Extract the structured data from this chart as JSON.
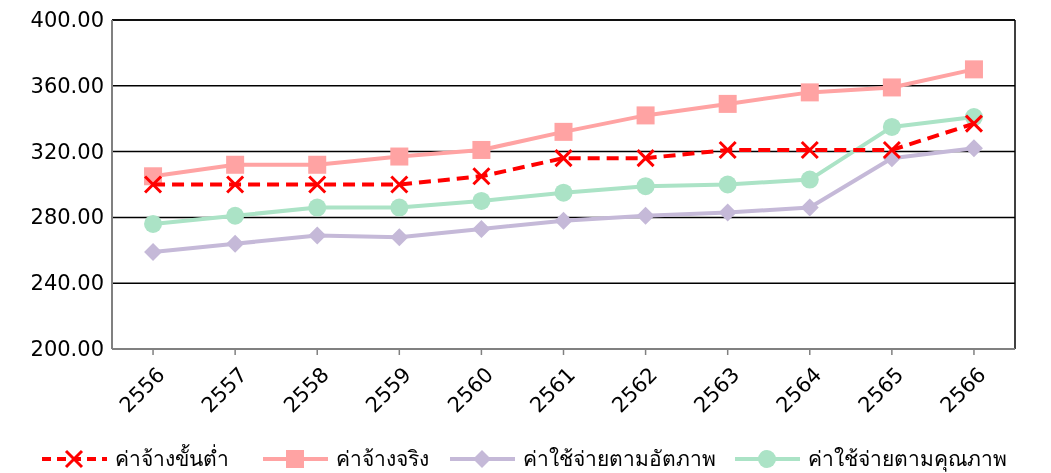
{
  "chart_data": {
    "type": "line",
    "categories": [
      "2556",
      "2557",
      "2558",
      "2559",
      "2560",
      "2561",
      "2562",
      "2563",
      "2564",
      "2565",
      "2566"
    ],
    "ylim": [
      200,
      400
    ],
    "yticks": [
      {
        "value": 200,
        "label": "200.00"
      },
      {
        "value": 240,
        "label": "240.00"
      },
      {
        "value": 280,
        "label": "280.00"
      },
      {
        "value": 320,
        "label": "320.00"
      },
      {
        "value": 360,
        "label": "360.00"
      },
      {
        "value": 400,
        "label": "400.00"
      }
    ],
    "grid": "y",
    "legend": "bottom",
    "series": [
      {
        "name": "ค่าจ้างขั้นต่ำ",
        "color": "#ff0000",
        "marker": "cross",
        "line_style": "dashed",
        "values": [
          300,
          300,
          300,
          300,
          305,
          316,
          316,
          321,
          321,
          321,
          337
        ]
      },
      {
        "name": "ค่าจ้างจริง",
        "color": "#ffa3a3",
        "marker": "square",
        "line_style": "solid",
        "values": [
          305,
          312,
          312,
          317,
          321,
          332,
          342,
          349,
          356,
          359,
          370
        ]
      },
      {
        "name": "ค่าใช้จ่ายตามอัตภาพ",
        "color": "#c5b9d8",
        "marker": "diamond",
        "line_style": "solid",
        "values": [
          259,
          264,
          269,
          268,
          273,
          278,
          281,
          283,
          286,
          316,
          322
        ]
      },
      {
        "name": "ค่าใช้จ่ายตามคุณภาพ",
        "color": "#abe3c6",
        "marker": "circle",
        "line_style": "solid",
        "values": [
          276,
          281,
          286,
          286,
          290,
          295,
          299,
          300,
          303,
          335,
          341
        ]
      }
    ]
  }
}
